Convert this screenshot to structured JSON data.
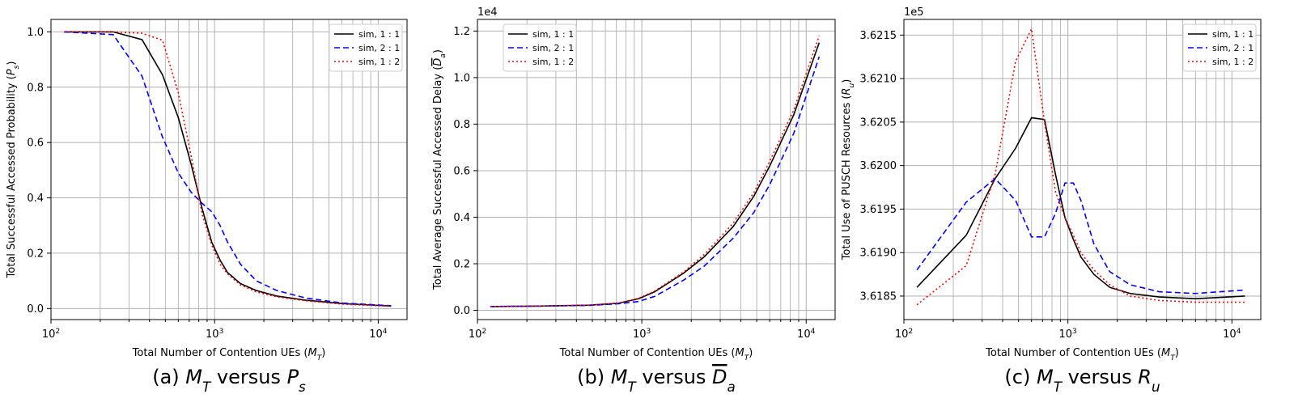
{
  "legend_labels": [
    "sim, 1 : 1",
    "sim, 2 : 1",
    "sim, 1 : 2"
  ],
  "series_styles": [
    {
      "color": "#000000",
      "dash": "solid"
    },
    {
      "color": "#0000ff",
      "dash": "dashed"
    },
    {
      "color": "#ff0000",
      "dash": "dotted"
    }
  ],
  "chart_data": [
    {
      "type": "line",
      "caption": "(a) M_T versus P_s",
      "xlabel": "Total Number of Contention UEs (M_T)",
      "ylabel": "Total Successful Accessed Probability (P_s)",
      "xscale": "log",
      "xlim": [
        100,
        15000
      ],
      "ylim": [
        -0.04,
        1.045
      ],
      "yticks": [
        0.0,
        0.2,
        0.4,
        0.6,
        0.8,
        1.0
      ],
      "ytick_labels": [
        "0.0",
        "0.2",
        "0.4",
        "0.6",
        "0.8",
        "1.0"
      ],
      "xtick_labels": [
        "10^2",
        "10^3",
        "10^4"
      ],
      "offset_label": "",
      "grid": true,
      "legend_position": "upper right",
      "series": [
        {
          "name": "sim, 1 : 1",
          "x": [
            120,
            240,
            360,
            480,
            600,
            720,
            840,
            960,
            1080,
            1200,
            1440,
            1800,
            2400,
            3600,
            6000,
            12000
          ],
          "y": [
            1.0,
            1.0,
            0.972,
            0.845,
            0.69,
            0.52,
            0.36,
            0.24,
            0.175,
            0.13,
            0.09,
            0.065,
            0.045,
            0.03,
            0.018,
            0.009
          ]
        },
        {
          "name": "sim, 2 : 1",
          "x": [
            120,
            240,
            360,
            480,
            600,
            720,
            840,
            960,
            1080,
            1200,
            1440,
            1800,
            2400,
            3600,
            6000,
            12000
          ],
          "y": [
            1.0,
            0.99,
            0.84,
            0.62,
            0.49,
            0.42,
            0.38,
            0.35,
            0.3,
            0.24,
            0.16,
            0.1,
            0.065,
            0.038,
            0.02,
            0.01
          ]
        },
        {
          "name": "sim, 1 : 2",
          "x": [
            120,
            240,
            360,
            480,
            600,
            720,
            840,
            960,
            1080,
            1200,
            1440,
            1800,
            2400,
            3600,
            6000,
            12000
          ],
          "y": [
            1.0,
            1.0,
            0.995,
            0.97,
            0.78,
            0.55,
            0.34,
            0.23,
            0.16,
            0.125,
            0.085,
            0.06,
            0.042,
            0.028,
            0.016,
            0.008
          ]
        }
      ]
    },
    {
      "type": "line",
      "caption": "(b) M_T versus D_a",
      "xlabel": "Total Number of Contention UEs (M_T)",
      "ylabel": "Total Average Successful Accessed Delay (D_a)",
      "xscale": "log",
      "xlim": [
        100,
        15000
      ],
      "ylim": [
        -0.04,
        1.25
      ],
      "yticks": [
        0.0,
        0.2,
        0.4,
        0.6,
        0.8,
        1.0,
        1.2
      ],
      "ytick_labels": [
        "0.0",
        "0.2",
        "0.4",
        "0.6",
        "0.8",
        "1.0",
        "1.2"
      ],
      "xtick_labels": [
        "10^2",
        "10^3",
        "10^4"
      ],
      "offset_label": "1e4",
      "grid": true,
      "legend_position": "upper left",
      "series": [
        {
          "name": "sim, 1 : 1",
          "x": [
            120,
            240,
            480,
            720,
            960,
            1200,
            1800,
            2400,
            3600,
            4800,
            6000,
            8400,
            12000
          ],
          "y": [
            0.016,
            0.018,
            0.022,
            0.03,
            0.05,
            0.08,
            0.16,
            0.23,
            0.36,
            0.49,
            0.62,
            0.84,
            1.15
          ]
        },
        {
          "name": "sim, 2 : 1",
          "x": [
            120,
            240,
            480,
            720,
            960,
            1200,
            1800,
            2400,
            3600,
            4800,
            6000,
            8400,
            12000
          ],
          "y": [
            0.016,
            0.018,
            0.021,
            0.028,
            0.038,
            0.06,
            0.13,
            0.19,
            0.31,
            0.42,
            0.54,
            0.76,
            1.09
          ]
        },
        {
          "name": "sim, 1 : 2",
          "x": [
            120,
            240,
            480,
            720,
            960,
            1200,
            1800,
            2400,
            3600,
            4800,
            6000,
            8400,
            12000
          ],
          "y": [
            0.016,
            0.018,
            0.022,
            0.031,
            0.052,
            0.083,
            0.165,
            0.24,
            0.375,
            0.505,
            0.64,
            0.86,
            1.18
          ]
        }
      ]
    },
    {
      "type": "line",
      "caption": "(c) M_T versus R_u",
      "xlabel": "Total Number of Contention UEs (M_T)",
      "ylabel": "Total Use of PUSCH Resources (R_u)",
      "xscale": "log",
      "xlim": [
        100,
        15000
      ],
      "ylim": [
        3.61823,
        3.62168
      ],
      "yticks": [
        3.6185,
        3.619,
        3.6195,
        3.62,
        3.6205,
        3.621,
        3.6215
      ],
      "ytick_labels": [
        "3.6185",
        "3.6190",
        "3.6195",
        "3.6200",
        "3.6205",
        "3.6210",
        "3.6215"
      ],
      "xtick_labels": [
        "10^2",
        "10^3",
        "10^4"
      ],
      "offset_label": "1e5",
      "grid": true,
      "legend_position": "upper right",
      "series": [
        {
          "name": "sim, 1 : 1",
          "x": [
            120,
            240,
            360,
            480,
            600,
            720,
            840,
            960,
            1080,
            1200,
            1440,
            1800,
            2400,
            3600,
            6000,
            12000
          ],
          "y": [
            3.6186,
            3.6192,
            3.61985,
            3.6202,
            3.62055,
            3.62053,
            3.6199,
            3.6194,
            3.61915,
            3.61895,
            3.61875,
            3.6186,
            3.61853,
            3.61849,
            3.61847,
            3.6185
          ]
        },
        {
          "name": "sim, 2 : 1",
          "x": [
            120,
            240,
            360,
            480,
            600,
            720,
            840,
            960,
            1080,
            1200,
            1440,
            1800,
            2400,
            3600,
            6000,
            12000
          ],
          "y": [
            3.6188,
            3.61958,
            3.61985,
            3.6196,
            3.61918,
            3.61918,
            3.61945,
            3.6198,
            3.6198,
            3.6196,
            3.6191,
            3.61878,
            3.61863,
            3.61855,
            3.61853,
            3.61857
          ]
        },
        {
          "name": "sim, 1 : 2",
          "x": [
            120,
            240,
            360,
            480,
            600,
            720,
            840,
            960,
            1080,
            1200,
            1440,
            1800,
            2400,
            3600,
            6000,
            12000
          ],
          "y": [
            3.6184,
            3.61885,
            3.6199,
            3.6212,
            3.62157,
            3.6205,
            3.6197,
            3.6194,
            3.6192,
            3.619,
            3.6188,
            3.61863,
            3.6185,
            3.61845,
            3.61843,
            3.61843
          ]
        }
      ]
    }
  ]
}
